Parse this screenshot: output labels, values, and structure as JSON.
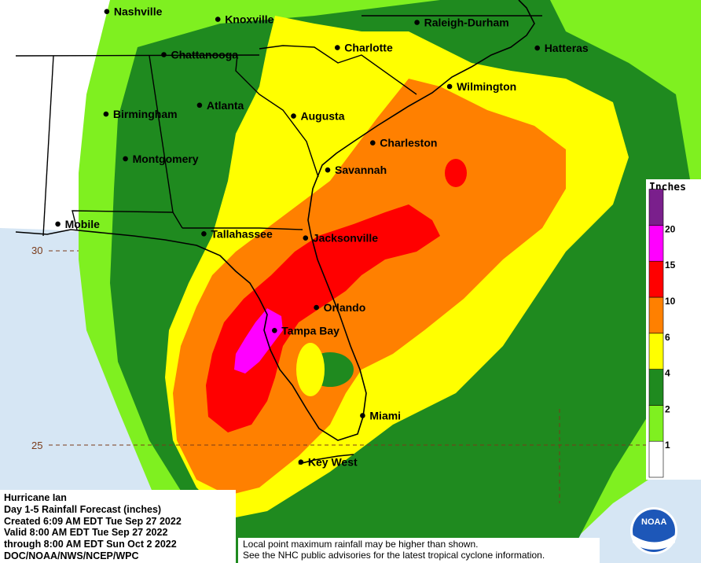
{
  "map": {
    "cities": [
      {
        "name": "Nashville",
        "lon": -86.78,
        "lat": 36.16
      },
      {
        "name": "Knoxville",
        "lon": -83.92,
        "lat": 35.96
      },
      {
        "name": "Raleigh-Durham",
        "lon": -78.79,
        "lat": 35.88
      },
      {
        "name": "Hatteras",
        "lon": -75.69,
        "lat": 35.22
      },
      {
        "name": "Chattanooga",
        "lon": -85.31,
        "lat": 35.05
      },
      {
        "name": "Charlotte",
        "lon": -80.84,
        "lat": 35.23
      },
      {
        "name": "Wilmington",
        "lon": -77.95,
        "lat": 34.23
      },
      {
        "name": "Birmingham",
        "lon": -86.8,
        "lat": 33.52
      },
      {
        "name": "Atlanta",
        "lon": -84.39,
        "lat": 33.75
      },
      {
        "name": "Augusta",
        "lon": -81.97,
        "lat": 33.47
      },
      {
        "name": "Charleston",
        "lon": -79.93,
        "lat": 32.78
      },
      {
        "name": "Montgomery",
        "lon": -86.3,
        "lat": 32.37
      },
      {
        "name": "Savannah",
        "lon": -81.09,
        "lat": 32.08
      },
      {
        "name": "Mobile",
        "lon": -88.04,
        "lat": 30.69
      },
      {
        "name": "Tallahassee",
        "lon": -84.28,
        "lat": 30.44
      },
      {
        "name": "Jacksonville",
        "lon": -81.66,
        "lat": 30.33
      },
      {
        "name": "Orlando",
        "lon": -81.38,
        "lat": 28.54
      },
      {
        "name": "Tampa Bay",
        "lon": -82.46,
        "lat": 27.95
      },
      {
        "name": "Miami",
        "lon": -80.19,
        "lat": 25.76
      },
      {
        "name": "Key West",
        "lon": -81.78,
        "lat": 24.56
      }
    ],
    "latitudes": [
      {
        "value": 30,
        "label": "30"
      },
      {
        "value": 25,
        "label": "25"
      }
    ]
  },
  "legend": {
    "title": "Inches",
    "bins": [
      {
        "label": "1",
        "color": "#ffffff"
      },
      {
        "label": "2",
        "color": "#7ff020"
      },
      {
        "label": "4",
        "color": "#1f8a1f"
      },
      {
        "label": "6",
        "color": "#ffff00"
      },
      {
        "label": "10",
        "color": "#ff8000"
      },
      {
        "label": "15",
        "color": "#ff0000"
      },
      {
        "label": "20",
        "color": "#ff00ff"
      },
      {
        "label": "",
        "color": "#7a1f8c"
      }
    ]
  },
  "colors": {
    "ocean": "#d6e6f4",
    "land_no_rain": "#ffffff",
    "light_green": "#7ff020",
    "dark_green": "#1f8a1f",
    "yellow": "#ffff00",
    "orange": "#ff8000",
    "red": "#ff0000",
    "magenta": "#ff00ff",
    "purple": "#7a1f8c"
  },
  "info": {
    "title": "Hurricane Ian",
    "line2": "Day 1-5 Rainfall Forecast (inches)",
    "line3": "Created 6:09 AM EDT Tue Sep 27 2022",
    "line4": "Valid 8:00 AM EDT Tue Sep 27 2022",
    "line5": "through 8:00 AM EDT Sun Oct 2 2022",
    "line6": "DOC/NOAA/NWS/NCEP/WPC"
  },
  "disclaimer": {
    "line1": "Local point maximum rainfall may be higher than shown.",
    "line2": "See the NHC public advisories for the latest tropical cyclone information."
  },
  "logo": {
    "text": "NOAA"
  }
}
